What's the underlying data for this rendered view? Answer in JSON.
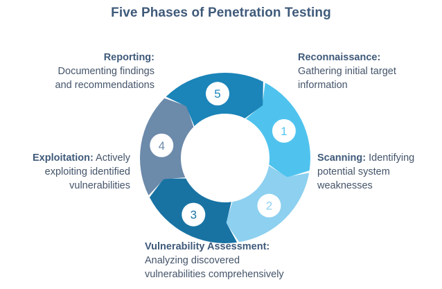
{
  "title": "Five Phases of Penetration Testing",
  "phases": [
    {
      "number": "1",
      "heading": "Reconnaissance:",
      "description_lines": [
        "Gathering initial target",
        "information"
      ],
      "color": "#4fc3ee",
      "number_color": "#4fc3ee"
    },
    {
      "number": "2",
      "heading": "Scanning:",
      "description_lines": [
        "Identifying",
        "potential system",
        "weaknesses"
      ],
      "color": "#8dd0ef",
      "number_color": "#8dd0ef"
    },
    {
      "number": "3",
      "heading": "Vulnerability Assessment:",
      "description_lines": [
        "Analyzing discovered",
        "vulnerabilities comprehensively"
      ],
      "color": "#1873a3",
      "number_color": "#1873a3"
    },
    {
      "number": "4",
      "heading": "Exploitation:",
      "description_lines": [
        "Actively",
        "exploiting identified",
        "vulnerabilities"
      ],
      "color": "#6c8aaa",
      "number_color": "#6c8aaa"
    },
    {
      "number": "5",
      "heading": "Reporting:",
      "description_lines": [
        "Documenting findings",
        "and recommendations"
      ],
      "color": "#1b84b8",
      "number_color": "#1b84b8"
    }
  ],
  "colors": {
    "title": "#3f5a7a",
    "heading": "#3f5a7a",
    "body_text": "#44546a"
  }
}
